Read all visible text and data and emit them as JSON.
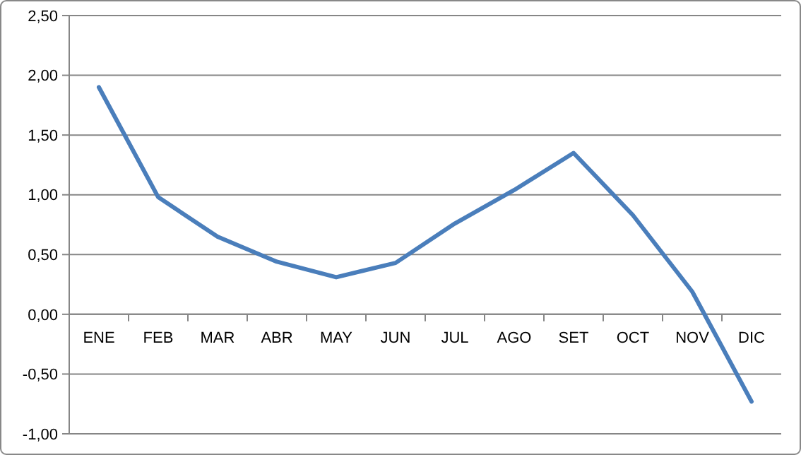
{
  "chart_data": {
    "type": "line",
    "categories": [
      "ENE",
      "FEB",
      "MAR",
      "ABR",
      "MAY",
      "JUN",
      "JUL",
      "AGO",
      "SET",
      "OCT",
      "NOV",
      "DIC"
    ],
    "series": [
      {
        "color": "#4a7ebb",
        "values": [
          1.9,
          0.98,
          0.65,
          0.44,
          0.31,
          0.43,
          0.76,
          1.04,
          1.35,
          0.83,
          0.19,
          -0.73
        ]
      }
    ],
    "ylim": [
      -1,
      2.5
    ],
    "yticks": [
      {
        "value": -1,
        "label": "-1,00"
      },
      {
        "value": -0.5,
        "label": "-0,50"
      },
      {
        "value": 0,
        "label": "0,00"
      },
      {
        "value": 0.5,
        "label": "0,50"
      },
      {
        "value": 1,
        "label": "1,00"
      },
      {
        "value": 1.5,
        "label": "1,50"
      },
      {
        "value": 2,
        "label": "2,00"
      },
      {
        "value": 2.5,
        "label": "2,50"
      }
    ],
    "grid": "y",
    "marker": "none",
    "line_style": "solid"
  }
}
